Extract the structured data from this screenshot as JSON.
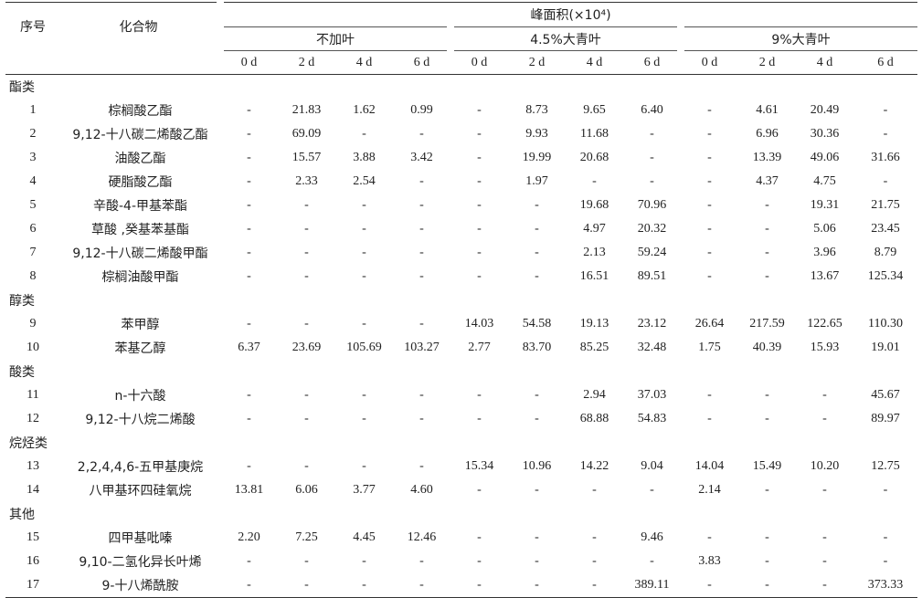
{
  "header": {
    "index_label": "序号",
    "compound_label": "化合物",
    "peak_area_label": "峰面积(×10⁴)",
    "groups": [
      "不加叶",
      "4.5%大青叶",
      "9%大青叶"
    ],
    "days": [
      "0 d",
      "2 d",
      "4 d",
      "6 d",
      "0 d",
      "2 d",
      "4 d",
      "6 d",
      "0 d",
      "2 d",
      "4 d",
      "6 d"
    ]
  },
  "sections": [
    {
      "category": "酯类",
      "rows": [
        {
          "no": "1",
          "name": "棕榈酸乙酯",
          "values": [
            "-",
            "21.83",
            "1.62",
            "0.99",
            "-",
            "8.73",
            "9.65",
            "6.40",
            "-",
            "4.61",
            "20.49",
            "-"
          ]
        },
        {
          "no": "2",
          "name": "9,12-十八碳二烯酸乙酯",
          "values": [
            "-",
            "69.09",
            "-",
            "-",
            "-",
            "9.93",
            "11.68",
            "-",
            "-",
            "6.96",
            "30.36",
            "-"
          ]
        },
        {
          "no": "3",
          "name": "油酸乙酯",
          "values": [
            "-",
            "15.57",
            "3.88",
            "3.42",
            "-",
            "19.99",
            "20.68",
            "-",
            "-",
            "13.39",
            "49.06",
            "31.66"
          ]
        },
        {
          "no": "4",
          "name": "硬脂酸乙酯",
          "values": [
            "-",
            "2.33",
            "2.54",
            "-",
            "-",
            "1.97",
            "-",
            "-",
            "-",
            "4.37",
            "4.75",
            "-"
          ]
        },
        {
          "no": "5",
          "name": "辛酸-4-甲基苯酯",
          "values": [
            "-",
            "-",
            "-",
            "-",
            "-",
            "-",
            "19.68",
            "70.96",
            "-",
            "-",
            "19.31",
            "21.75"
          ]
        },
        {
          "no": "6",
          "name": "草酸 ,癸基苯基酯",
          "values": [
            "-",
            "-",
            "-",
            "-",
            "-",
            "-",
            "4.97",
            "20.32",
            "-",
            "-",
            "5.06",
            "23.45"
          ]
        },
        {
          "no": "7",
          "name": "9,12-十八碳二烯酸甲酯",
          "values": [
            "-",
            "-",
            "-",
            "-",
            "-",
            "-",
            "2.13",
            "59.24",
            "-",
            "-",
            "3.96",
            "8.79"
          ]
        },
        {
          "no": "8",
          "name": "棕榈油酸甲酯",
          "values": [
            "-",
            "-",
            "-",
            "-",
            "-",
            "-",
            "16.51",
            "89.51",
            "-",
            "-",
            "13.67",
            "125.34"
          ]
        }
      ]
    },
    {
      "category": "醇类",
      "rows": [
        {
          "no": "9",
          "name": "苯甲醇",
          "values": [
            "-",
            "-",
            "-",
            "-",
            "14.03",
            "54.58",
            "19.13",
            "23.12",
            "26.64",
            "217.59",
            "122.65",
            "110.30"
          ]
        },
        {
          "no": "10",
          "name": "苯基乙醇",
          "values": [
            "6.37",
            "23.69",
            "105.69",
            "103.27",
            "2.77",
            "83.70",
            "85.25",
            "32.48",
            "1.75",
            "40.39",
            "15.93",
            "19.01"
          ]
        }
      ]
    },
    {
      "category": "酸类",
      "rows": [
        {
          "no": "11",
          "name": "n-十六酸",
          "values": [
            "-",
            "-",
            "-",
            "-",
            "-",
            "-",
            "2.94",
            "37.03",
            "-",
            "-",
            "-",
            "45.67"
          ]
        },
        {
          "no": "12",
          "name": "9,12-十八烷二烯酸",
          "values": [
            "-",
            "-",
            "-",
            "-",
            "-",
            "-",
            "68.88",
            "54.83",
            "-",
            "-",
            "-",
            "89.97"
          ]
        }
      ]
    },
    {
      "category": "烷烃类",
      "rows": [
        {
          "no": "13",
          "name": "2,2,4,4,6-五甲基庚烷",
          "values": [
            "-",
            "-",
            "-",
            "-",
            "15.34",
            "10.96",
            "14.22",
            "9.04",
            "14.04",
            "15.49",
            "10.20",
            "12.75"
          ]
        },
        {
          "no": "14",
          "name": "八甲基环四硅氧烷",
          "values": [
            "13.81",
            "6.06",
            "3.77",
            "4.60",
            "-",
            "-",
            "-",
            "-",
            "2.14",
            "-",
            "-",
            "-"
          ]
        }
      ]
    },
    {
      "category": "其他",
      "rows": [
        {
          "no": "15",
          "name": "四甲基吡嗪",
          "values": [
            "2.20",
            "7.25",
            "4.45",
            "12.46",
            "-",
            "-",
            "-",
            "9.46",
            "-",
            "-",
            "-",
            "-"
          ]
        },
        {
          "no": "16",
          "name": "9,10-二氢化异长叶烯",
          "values": [
            "-",
            "-",
            "-",
            "-",
            "-",
            "-",
            "-",
            "-",
            "3.83",
            "-",
            "-",
            "-"
          ]
        },
        {
          "no": "17",
          "name": "9-十八烯酰胺",
          "values": [
            "-",
            "-",
            "-",
            "-",
            "-",
            "-",
            "-",
            "389.11",
            "-",
            "-",
            "-",
            "373.33"
          ]
        }
      ]
    }
  ]
}
